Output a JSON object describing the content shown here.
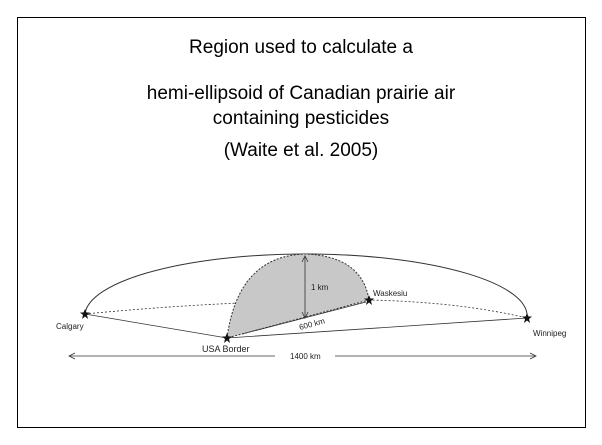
{
  "title": {
    "lines": [
      "Region used to calculate a",
      "hemi-ellipsoid of Canadian prairie air",
      "containing pesticides",
      "(Waite et al. 2005)"
    ]
  },
  "diagram": {
    "labels": {
      "calgary": "Calgary",
      "winnipeg": "Winnipeg",
      "waskesiu": "Waskesiu",
      "usa_border": "USA Border",
      "height": "1 km",
      "radius": "600 km",
      "width": "1400 km"
    }
  }
}
